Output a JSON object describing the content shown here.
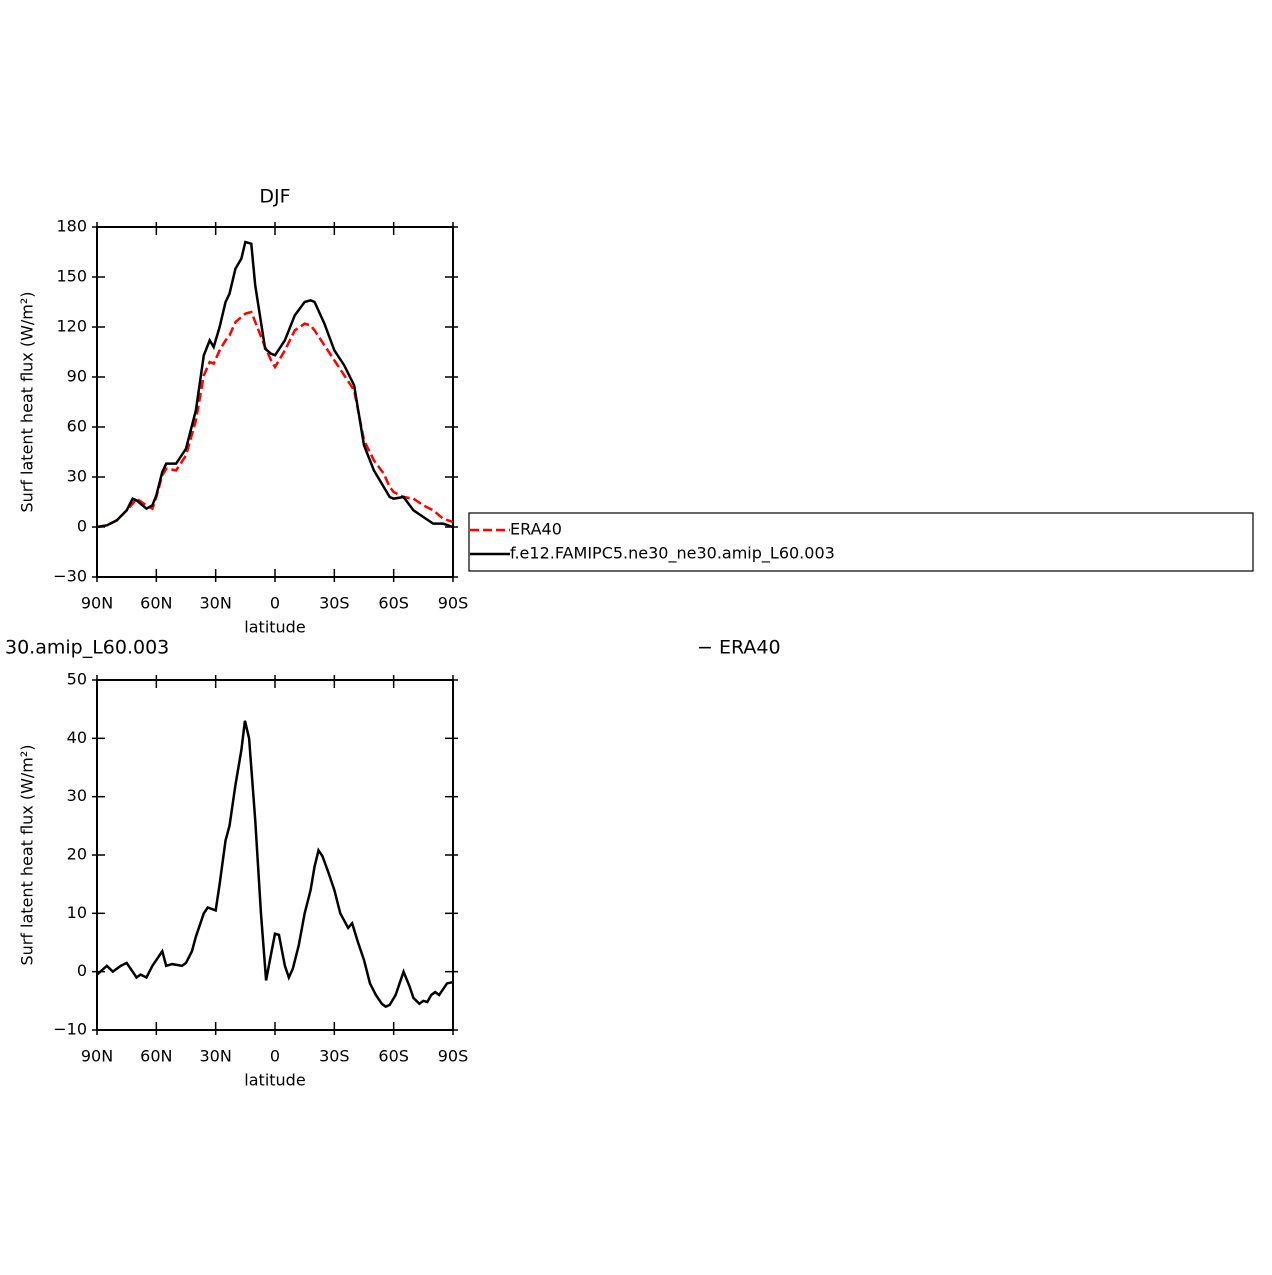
{
  "chart_data": [
    {
      "type": "line",
      "title": "DJF",
      "xlabel": "latitude",
      "ylabel": "Surf latent heat flux (W/m²)",
      "x": [
        90,
        85,
        80,
        75,
        72,
        70,
        65,
        62,
        60,
        57,
        55,
        50,
        45,
        40,
        36,
        33,
        31,
        28,
        25,
        23,
        20,
        17,
        15,
        12,
        10,
        5,
        2,
        0,
        -5,
        -10,
        -15,
        -18,
        -20,
        -25,
        -30,
        -35,
        -40,
        -45,
        -50,
        -55,
        -58,
        -60,
        -65,
        -70,
        -75,
        -80,
        -85,
        -90
      ],
      "series": [
        {
          "name": "ERA40",
          "color": "#ff0000",
          "style": "dashed",
          "values": [
            0,
            1,
            4,
            10,
            14,
            17,
            13,
            11,
            18,
            31,
            35,
            34,
            43,
            64,
            91,
            99,
            98,
            106,
            112,
            115,
            123,
            126,
            128,
            129,
            123,
            108,
            100,
            96,
            106,
            118,
            122,
            121,
            118,
            109,
            100,
            91,
            82,
            52,
            40,
            32,
            24,
            21,
            18,
            17,
            13,
            10,
            5,
            3
          ]
        },
        {
          "name": "f.e12.FAMIPC5.ne30_ne30.amip_L60.003",
          "color": "#000000",
          "style": "solid",
          "values": [
            0,
            1,
            4,
            10,
            17,
            16,
            11,
            13,
            19,
            33,
            38,
            38,
            47,
            70,
            103,
            112,
            108,
            120,
            135,
            140,
            155,
            161,
            171,
            170,
            145,
            107,
            104,
            103,
            112,
            127,
            135,
            136,
            135,
            122,
            106,
            97,
            85,
            49,
            34,
            24,
            18,
            17,
            18,
            10,
            6,
            2,
            2,
            0
          ]
        }
      ],
      "xlim": [
        90,
        -90
      ],
      "xticks": [
        {
          "value": 90,
          "label": "90N"
        },
        {
          "value": 60,
          "label": "60N"
        },
        {
          "value": 30,
          "label": "30N"
        },
        0,
        {
          "value": -30,
          "label": "30S"
        },
        {
          "value": -60,
          "label": "60S"
        },
        {
          "value": -90,
          "label": "90S"
        }
      ],
      "ylim": [
        -30,
        180
      ],
      "yticks": [
        {
          "value": -30,
          "label": "−30"
        },
        0,
        30,
        60,
        90,
        120,
        150,
        180
      ],
      "legend": "right"
    },
    {
      "type": "line",
      "title_fragments": [
        "30.amip_L60.003",
        "− ERA40"
      ],
      "xlabel": "latitude",
      "ylabel": "Surf latent heat flux (W/m²)",
      "x": [
        90,
        85,
        82,
        78,
        75,
        70,
        68,
        65,
        62,
        57,
        55,
        52,
        47,
        45,
        42,
        40,
        36,
        34,
        30,
        28,
        25,
        23,
        20,
        17,
        15.2,
        13.1,
        10,
        7.1,
        4.5,
        2,
        0,
        -2,
        -5,
        -7,
        -9,
        -12,
        -15,
        -18,
        -20,
        -22,
        -24,
        -27,
        -30,
        -33,
        -37,
        -39,
        -42,
        -45,
        -48,
        -51,
        -54,
        -56,
        -58,
        -61,
        -63,
        -65,
        -68,
        -70,
        -73,
        -75,
        -77,
        -79,
        -81,
        -83,
        -85,
        -87,
        -90
      ],
      "color": "#000000",
      "values": [
        -0.5,
        1,
        0,
        1,
        1.5,
        -1,
        -0.5,
        -1,
        1,
        3.5,
        1,
        1.3,
        1,
        1.5,
        3.5,
        6,
        10,
        11,
        10.5,
        15,
        22.5,
        25,
        32,
        38,
        43,
        40,
        26,
        10,
        -1.5,
        3,
        6.5,
        6.3,
        1,
        -1,
        0.5,
        4.5,
        10,
        14,
        18,
        20.8,
        19.8,
        17,
        14,
        10,
        7.5,
        8.3,
        5,
        2,
        -2,
        -4,
        -5.5,
        -6,
        -5.7,
        -4,
        -2,
        0,
        -2.5,
        -4.5,
        -5.5,
        -5,
        -5.2,
        -4,
        -3.5,
        -4,
        -3,
        -2,
        -1.8
      ],
      "xlim": [
        90,
        -90
      ],
      "xticks": [
        {
          "value": 90,
          "label": "90N"
        },
        {
          "value": 60,
          "label": "60N"
        },
        {
          "value": 30,
          "label": "30N"
        },
        0,
        {
          "value": -30,
          "label": "30S"
        },
        {
          "value": -60,
          "label": "60S"
        },
        {
          "value": -90,
          "label": "90S"
        }
      ],
      "ylim": [
        -10,
        50
      ],
      "yticks": [
        {
          "value": -10,
          "label": "−10"
        },
        0,
        10,
        20,
        30,
        40,
        50
      ]
    }
  ]
}
